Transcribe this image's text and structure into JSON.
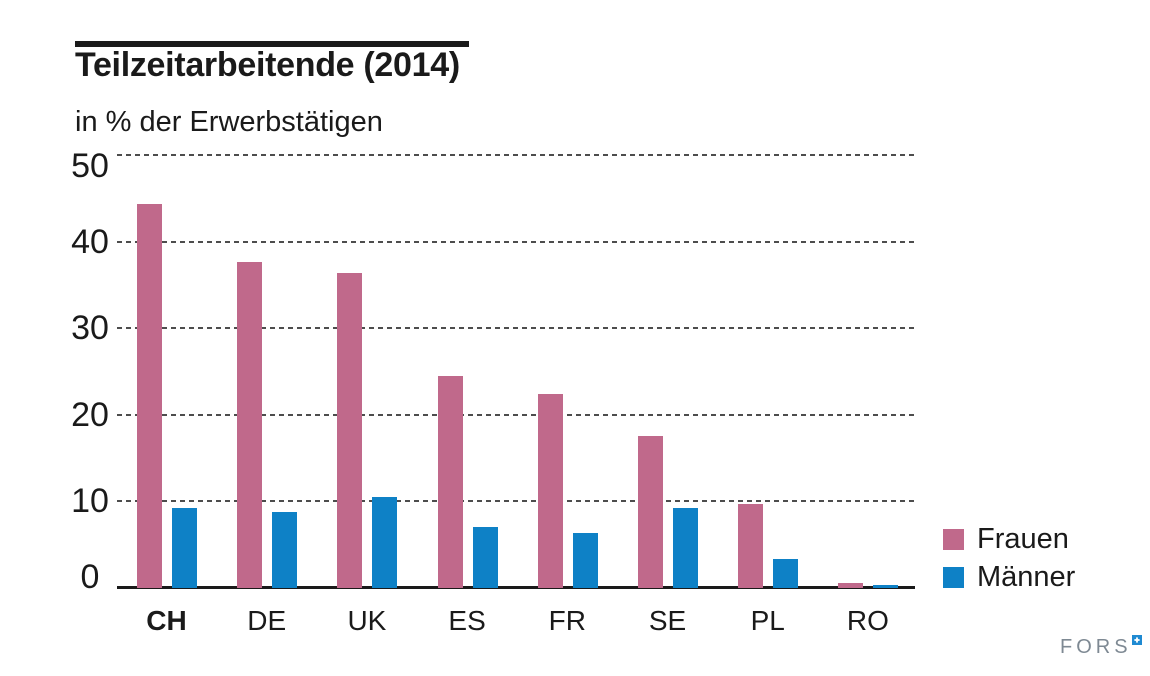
{
  "header": {
    "title": "Teilzeitarbeitende (2014)",
    "subtitle": "in % der Erwerbstätigen"
  },
  "chart_data": {
    "type": "bar",
    "title": "Teilzeitarbeitende (2014)",
    "subtitle": "in % der Erwerbstätigen",
    "ylabel": "in % der Erwerbstätigen",
    "categories": [
      "CH",
      "DE",
      "UK",
      "ES",
      "FR",
      "SE",
      "PL",
      "RO"
    ],
    "series": [
      {
        "name": "Frauen",
        "color": "#c0698b",
        "values": [
          44.3,
          37.6,
          36.4,
          24.5,
          22.4,
          17.5,
          9.7,
          0.6
        ]
      },
      {
        "name": "Männer",
        "color": "#0e81c6",
        "values": [
          9.2,
          8.8,
          10.5,
          7.1,
          6.3,
          9.2,
          3.4,
          0.3
        ]
      }
    ],
    "ylim": [
      0,
      50
    ],
    "yticks": [
      50,
      40,
      30,
      20,
      10,
      0
    ],
    "grid": "dashed-horizontal",
    "legend_position": "right",
    "emphasized_category": "CH"
  },
  "legend": {
    "items": [
      {
        "label": "Frauen",
        "color": "#c0698b"
      },
      {
        "label": "Männer",
        "color": "#0e81c6"
      }
    ]
  },
  "branding": {
    "logo_text": "FORS"
  },
  "colors": {
    "text": "#1a1a1a",
    "grid": "#4d4d4d",
    "axis": "#1a1a1a",
    "frauen": "#c0698b",
    "maenner": "#0e81c6",
    "logo_gray": "#7e8993",
    "logo_blue": "#1f8ad2"
  }
}
